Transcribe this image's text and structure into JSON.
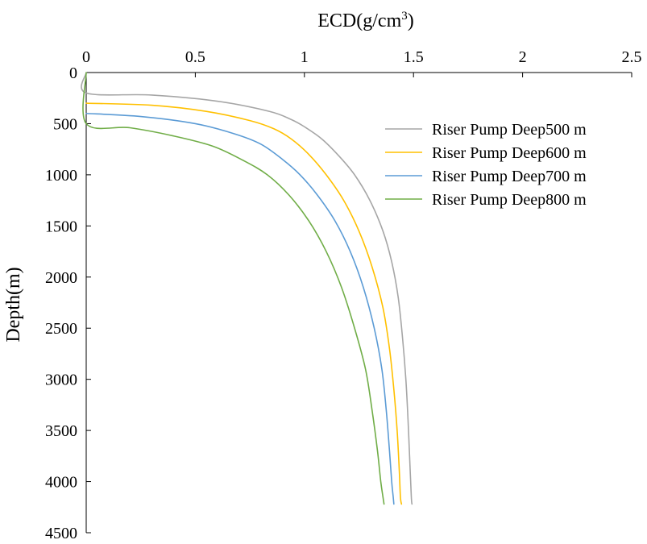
{
  "chart_data": {
    "type": "line",
    "title": "",
    "xlabel": "ECD(g/cm³)",
    "xlabel_base": "ECD(g/cm",
    "xlabel_sup": "3",
    "xlabel_end": ")",
    "ylabel": "Depth(m)",
    "x_axis_position": "top",
    "y_axis_inverted": true,
    "xlim": [
      0,
      2.5
    ],
    "ylim": [
      0,
      4500
    ],
    "x_ticks": [
      0,
      0.5,
      1,
      1.5,
      2,
      2.5
    ],
    "x_tick_labels": [
      "0",
      "0.5",
      "1",
      "1.5",
      "2",
      "2.5"
    ],
    "y_ticks": [
      0,
      500,
      1000,
      1500,
      2000,
      2500,
      3000,
      3500,
      4000,
      4500
    ],
    "y_tick_labels": [
      "0",
      "500",
      "1000",
      "1500",
      "2000",
      "2500",
      "3000",
      "3500",
      "4000",
      "4500"
    ],
    "grid": false,
    "legend_position": "top-right",
    "series": [
      {
        "name": "Riser Pump Deep500 m",
        "color": "#a6a6a6",
        "points": [
          [
            0,
            0
          ],
          [
            0,
            200
          ],
          [
            0.3,
            220
          ],
          [
            0.6,
            280
          ],
          [
            0.84,
            380
          ],
          [
            0.94,
            460
          ],
          [
            1.0,
            530
          ],
          [
            1.08,
            650
          ],
          [
            1.16,
            820
          ],
          [
            1.23,
            1000
          ],
          [
            1.3,
            1250
          ],
          [
            1.36,
            1550
          ],
          [
            1.4,
            1850
          ],
          [
            1.43,
            2200
          ],
          [
            1.45,
            2600
          ],
          [
            1.465,
            3000
          ],
          [
            1.475,
            3400
          ],
          [
            1.483,
            3800
          ],
          [
            1.49,
            4150
          ],
          [
            1.493,
            4220
          ]
        ]
      },
      {
        "name": "Riser Pump Deep600 m",
        "color": "#ffc000",
        "points": [
          [
            0,
            300
          ],
          [
            0.3,
            320
          ],
          [
            0.55,
            380
          ],
          [
            0.75,
            470
          ],
          [
            0.86,
            550
          ],
          [
            0.94,
            650
          ],
          [
            1.02,
            800
          ],
          [
            1.1,
            1000
          ],
          [
            1.18,
            1250
          ],
          [
            1.25,
            1550
          ],
          [
            1.31,
            1900
          ],
          [
            1.36,
            2300
          ],
          [
            1.39,
            2700
          ],
          [
            1.41,
            3100
          ],
          [
            1.425,
            3500
          ],
          [
            1.435,
            3900
          ],
          [
            1.44,
            4150
          ],
          [
            1.445,
            4220
          ]
        ]
      },
      {
        "name": "Riser Pump Deep700 m",
        "color": "#5b9bd5",
        "points": [
          [
            0,
            400
          ],
          [
            0.25,
            430
          ],
          [
            0.5,
            500
          ],
          [
            0.68,
            600
          ],
          [
            0.8,
            700
          ],
          [
            0.9,
            850
          ],
          [
            0.98,
            1000
          ],
          [
            1.06,
            1200
          ],
          [
            1.14,
            1450
          ],
          [
            1.21,
            1750
          ],
          [
            1.27,
            2100
          ],
          [
            1.32,
            2500
          ],
          [
            1.355,
            2900
          ],
          [
            1.375,
            3300
          ],
          [
            1.39,
            3700
          ],
          [
            1.4,
            4000
          ],
          [
            1.407,
            4150
          ],
          [
            1.41,
            4220
          ]
        ]
      },
      {
        "name": "Riser Pump Deep800 m",
        "color": "#70ad47",
        "points": [
          [
            0,
            0
          ],
          [
            0,
            500
          ],
          [
            0.2,
            540
          ],
          [
            0.4,
            620
          ],
          [
            0.58,
            720
          ],
          [
            0.72,
            860
          ],
          [
            0.83,
            1000
          ],
          [
            0.93,
            1200
          ],
          [
            1.02,
            1450
          ],
          [
            1.1,
            1750
          ],
          [
            1.17,
            2100
          ],
          [
            1.23,
            2500
          ],
          [
            1.28,
            2900
          ],
          [
            1.31,
            3300
          ],
          [
            1.335,
            3700
          ],
          [
            1.35,
            4000
          ],
          [
            1.36,
            4150
          ],
          [
            1.365,
            4220
          ]
        ]
      }
    ]
  }
}
